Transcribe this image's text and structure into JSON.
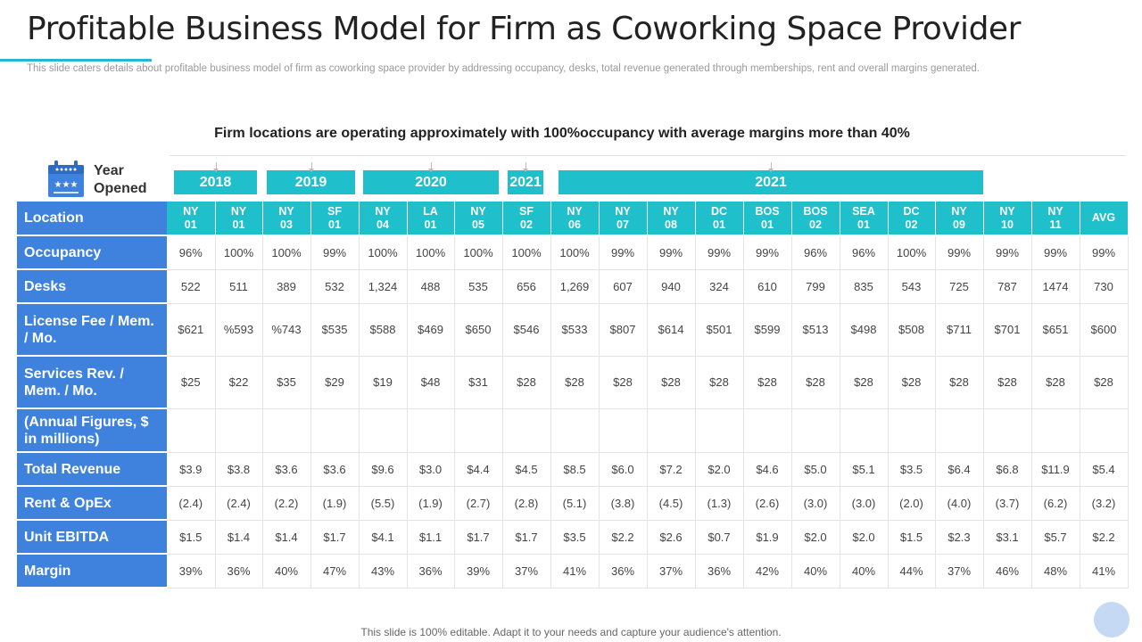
{
  "slide": {
    "title": "Profitable Business Model for Firm as Coworking Space Provider",
    "description": "This slide caters details about profitable business model of firm as coworking space provider  by addressing occupancy, desks, total revenue  generated through memberships, rent and overall  margins generated.",
    "subtitle": "Firm locations are operating approximately with 100%occupancy with average margins more than 40%",
    "year_opened_label": "Year Opened",
    "calendar_icon": "calendar-icon",
    "footer": "This slide is 100% editable. Adapt it to your needs and capture your audience's attention.",
    "colors": {
      "row_label_bg": "#3f82dd",
      "header_teal": "#1fbfcc",
      "accent": "#29b6d1"
    }
  },
  "years": [
    {
      "label": "2018",
      "span": 2
    },
    {
      "label": "2019",
      "span": 2
    },
    {
      "label": "2020",
      "span": 3
    },
    {
      "label": "2021",
      "span": 1
    },
    {
      "label": "2021",
      "span": 10
    }
  ],
  "table": {
    "location_label": "Location",
    "locations": [
      "NY 01",
      "NY 01",
      "NY 03",
      "SF 01",
      "NY 04",
      "LA 01",
      "NY 05",
      "SF 02",
      "NY 06",
      "NY 07",
      "NY 08",
      "DC 01",
      "BOS 01",
      "BOS 02",
      "SEA 01",
      "DC 02",
      "NY 09",
      "NY 10",
      "NY 11",
      "AVG"
    ],
    "rows": [
      {
        "label": "Occupancy",
        "values": [
          "96%",
          "100%",
          "100%",
          "99%",
          "100%",
          "100%",
          "100%",
          "100%",
          "100%",
          "99%",
          "99%",
          "99%",
          "99%",
          "96%",
          "96%",
          "100%",
          "99%",
          "99%",
          "99%",
          "99%"
        ]
      },
      {
        "label": "Desks",
        "values": [
          "522",
          "511",
          "389",
          "532",
          "1,324",
          "488",
          "535",
          "656",
          "1,269",
          "607",
          "940",
          "324",
          "610",
          "799",
          "835",
          "543",
          "725",
          "787",
          "1474",
          "730"
        ]
      },
      {
        "label": "License Fee / Mem. / Mo.",
        "values": [
          "$621",
          "%593",
          "%743",
          "$535",
          "$588",
          "$469",
          "$650",
          "$546",
          "$533",
          "$807",
          "$614",
          "$501",
          "$599",
          "$513",
          "$498",
          "$508",
          "$711",
          "$701",
          "$651",
          "$600"
        ]
      },
      {
        "label": "Services  Rev. / Mem. / Mo.",
        "values": [
          "$25",
          "$22",
          "$35",
          "$29",
          "$19",
          "$48",
          "$31",
          "$28",
          "$28",
          "$28",
          "$28",
          "$28",
          "$28",
          "$28",
          "$28",
          "$28",
          "$28",
          "$28",
          "$28",
          "$28"
        ]
      },
      {
        "label": "(Annual Figures, $ in millions)",
        "values": [
          "",
          "",
          "",
          "",
          "",
          "",
          "",
          "",
          "",
          "",
          "",
          "",
          "",
          "",
          "",
          "",
          "",
          "",
          "",
          ""
        ]
      },
      {
        "label": "Total Revenue",
        "values": [
          "$3.9",
          "$3.8",
          "$3.6",
          "$3.6",
          "$9.6",
          "$3.0",
          "$4.4",
          "$4.5",
          "$8.5",
          "$6.0",
          "$7.2",
          "$2.0",
          "$4.6",
          "$5.0",
          "$5.1",
          "$3.5",
          "$6.4",
          "$6.8",
          "$11.9",
          "$5.4"
        ]
      },
      {
        "label": "Rent & OpEx",
        "values": [
          "(2.4)",
          "(2.4)",
          "(2.2)",
          "(1.9)",
          "(5.5)",
          "(1.9)",
          "(2.7)",
          "(2.8)",
          "(5.1)",
          "(3.8)",
          "(4.5)",
          "(1.3)",
          "(2.6)",
          "(3.0)",
          "(3.0)",
          "(2.0)",
          "(4.0)",
          "(3.7)",
          "(6.2)",
          "(3.2)"
        ]
      },
      {
        "label": "Unit EBITDA",
        "values": [
          "$1.5",
          "$1.4",
          "$1.4",
          "$1.7",
          "$4.1",
          "$1.1",
          "$1.7",
          "$1.7",
          "$3.5",
          "$2.2",
          "$2.6",
          "$0.7",
          "$1.9",
          "$2.0",
          "$2.0",
          "$1.5",
          "$2.3",
          "$3.1",
          "$5.7",
          "$2.2"
        ]
      },
      {
        "label": "Margin",
        "values": [
          "39%",
          "36%",
          "40%",
          "47%",
          "43%",
          "36%",
          "39%",
          "37%",
          "41%",
          "36%",
          "37%",
          "36%",
          "42%",
          "40%",
          "40%",
          "44%",
          "37%",
          "46%",
          "48%",
          "41%"
        ]
      }
    ]
  }
}
